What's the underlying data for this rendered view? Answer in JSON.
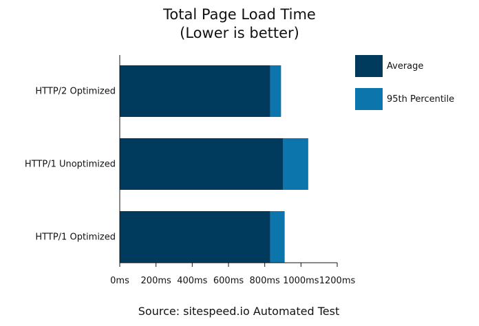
{
  "chart_data": {
    "type": "bar",
    "orientation": "horizontal",
    "stacked": true,
    "title": "Total Page Load Time",
    "subtitle": "(Lower is better)",
    "categories": [
      "HTTP/2 Optimized",
      "HTTP/1 Unoptimized",
      "HTTP/1 Optimized"
    ],
    "series": [
      {
        "name": "Average",
        "color": "#003a5c",
        "values": [
          830,
          900,
          830
        ]
      },
      {
        "name": "95th Percentile",
        "color": "#0c75ab",
        "values": [
          60,
          140,
          80
        ]
      }
    ],
    "xlim": [
      0,
      1200
    ],
    "x_ticks": [
      0,
      200,
      400,
      600,
      800,
      1000,
      1200
    ],
    "x_tick_labels": [
      "0ms",
      "200ms",
      "400ms",
      "600ms",
      "800ms",
      "1000ms",
      "1200ms"
    ],
    "xlabel": "",
    "ylabel": "",
    "grid": false,
    "legend_position": "top-right",
    "source": "Source: sitespeed.io Automated Test"
  }
}
